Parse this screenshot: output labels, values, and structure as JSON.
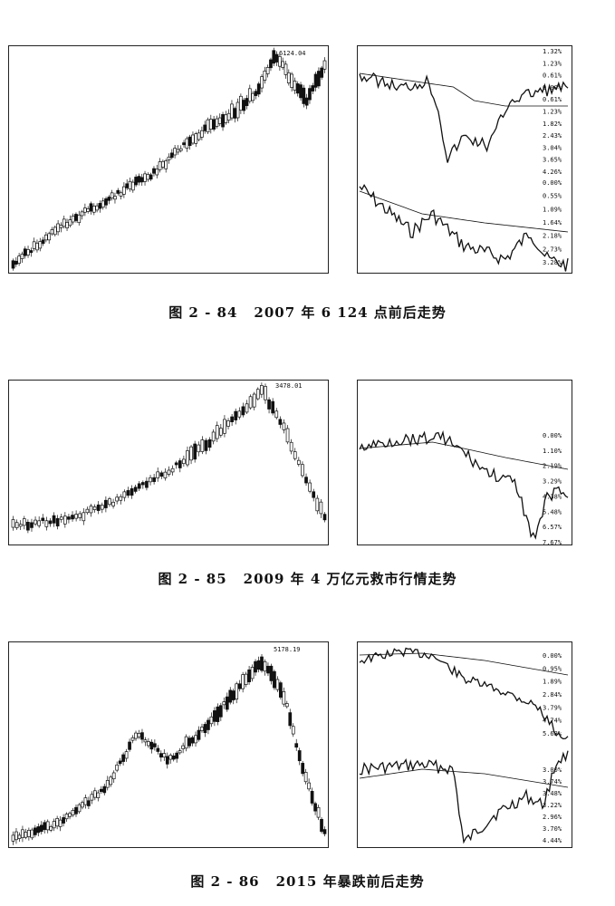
{
  "figures": [
    {
      "id": "2-84",
      "caption_number": "图 2 - 84",
      "caption_text": "2007 年 6 124 点前后走势",
      "peak_label": "6124.04",
      "pct_top": [
        "1.32%",
        "1.23%",
        "0.61%",
        "0.00%",
        "0.61%",
        "1.23%",
        "1.82%",
        "2.43%",
        "3.04%",
        "3.65%",
        "4.26%"
      ],
      "pct_bottom": [
        "0.00%",
        "0.55%",
        "1.09%",
        "1.64%",
        "2.18%",
        "2.73%",
        "3.28%"
      ]
    },
    {
      "id": "2-85",
      "caption_number": "图 2 - 85",
      "caption_text": "2009 年 4 万亿元救市行情走势",
      "peak_label": "3478.01",
      "pct_top": [
        "0.00%",
        "1.10%",
        "2.19%",
        "3.29%",
        "4.38%",
        "5.48%",
        "6.57%",
        "7.67%"
      ],
      "pct_bottom": []
    },
    {
      "id": "2-86",
      "caption_number": "图 2 - 86",
      "caption_text": "2015 年暴跌前后走势",
      "peak_label": "5178.19",
      "pct_top": [
        "0.00%",
        "0.95%",
        "1.89%",
        "2.84%",
        "3.79%",
        "4.74%",
        "5.68%"
      ],
      "pct_bottom": [
        "3.00%",
        "3.74%",
        "3.48%",
        "3.22%",
        "2.96%",
        "3.70%",
        "4.44%"
      ]
    }
  ]
}
